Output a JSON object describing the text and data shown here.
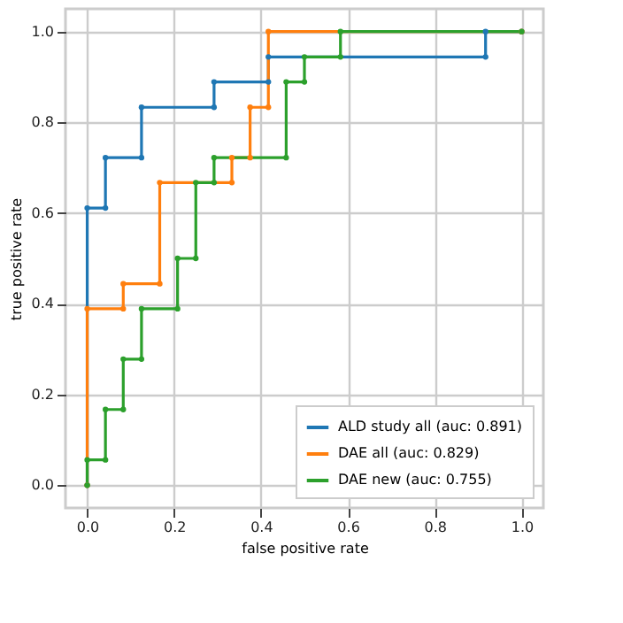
{
  "chart_data": {
    "type": "line",
    "xlabel": "false positive rate",
    "ylabel": "true positive rate",
    "xlim": [
      -0.05,
      1.05
    ],
    "ylim": [
      -0.05,
      1.05
    ],
    "xticks": [
      {
        "value": 0,
        "label": "0.0"
      },
      {
        "value": 0.2,
        "label": "0.2"
      },
      {
        "value": 0.4,
        "label": "0.4"
      },
      {
        "value": 0.6,
        "label": "0.6"
      },
      {
        "value": 0.8,
        "label": "0.8"
      },
      {
        "value": 1,
        "label": "1.0"
      }
    ],
    "yticks": [
      {
        "value": 0,
        "label": "0.0"
      },
      {
        "value": 0.2,
        "label": "0.2"
      },
      {
        "value": 0.4,
        "label": "0.4"
      },
      {
        "value": 0.6,
        "label": "0.6"
      },
      {
        "value": 0.8,
        "label": "0.8"
      },
      {
        "value": 1,
        "label": "1.0"
      }
    ],
    "grid": true,
    "legend": "bottom right",
    "marker": "circle",
    "line_style": "solid",
    "series": [
      {
        "name": "ALD study all (auc: 0.891)",
        "color": "#1f77b4",
        "x": [
          0,
          0,
          0.042,
          0.042,
          0.125,
          0.125,
          0.292,
          0.292,
          0.417,
          0.417,
          0.917,
          0.917,
          1
        ],
        "values": [
          0,
          0.611,
          0.611,
          0.722,
          0.722,
          0.833,
          0.833,
          0.889,
          0.889,
          0.944,
          0.944,
          1,
          1
        ]
      },
      {
        "name": "DAE all (auc: 0.829)",
        "color": "#ff7f0e",
        "x": [
          0,
          0,
          0.083,
          0.083,
          0.167,
          0.167,
          0.333,
          0.333,
          0.375,
          0.375,
          0.417,
          0.417,
          1
        ],
        "values": [
          0,
          0.389,
          0.389,
          0.444,
          0.444,
          0.667,
          0.667,
          0.722,
          0.722,
          0.833,
          0.833,
          1,
          1
        ]
      },
      {
        "name": "DAE new (auc: 0.755)",
        "color": "#2ca02c",
        "x": [
          0,
          0,
          0.042,
          0.042,
          0.083,
          0.083,
          0.125,
          0.125,
          0.208,
          0.208,
          0.25,
          0.25,
          0.292,
          0.292,
          0.458,
          0.458,
          0.5,
          0.5,
          0.583,
          0.583,
          1
        ],
        "values": [
          0,
          0.056,
          0.056,
          0.167,
          0.167,
          0.278,
          0.278,
          0.389,
          0.389,
          0.5,
          0.5,
          0.667,
          0.667,
          0.722,
          0.722,
          0.889,
          0.889,
          0.944,
          0.944,
          1,
          1
        ]
      }
    ]
  }
}
